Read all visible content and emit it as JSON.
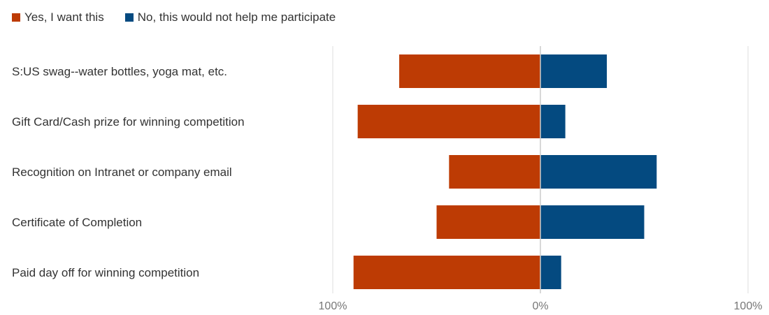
{
  "chart_data": {
    "type": "bar",
    "orientation": "horizontal-diverging",
    "categories": [
      "S:US swag--water bottles, yoga mat, etc.",
      "Gift Card/Cash prize for winning competition",
      "Recognition on Intranet or company email",
      "Certificate of Completion",
      "Paid day off for winning competition"
    ],
    "series": [
      {
        "name": "Yes, I want this",
        "color": "#bd3b04",
        "direction": "left",
        "values": [
          68,
          88,
          44,
          50,
          90
        ]
      },
      {
        "name": "No, this would not help me participate",
        "color": "#044a80",
        "direction": "right",
        "values": [
          32,
          12,
          56,
          50,
          10
        ]
      }
    ],
    "xlim": [
      -100,
      100
    ],
    "ticks": [
      {
        "value": -100,
        "label": "100%"
      },
      {
        "value": 0,
        "label": "0%"
      },
      {
        "value": 100,
        "label": "100%"
      }
    ],
    "grid": true,
    "legend_position": "top-left"
  }
}
